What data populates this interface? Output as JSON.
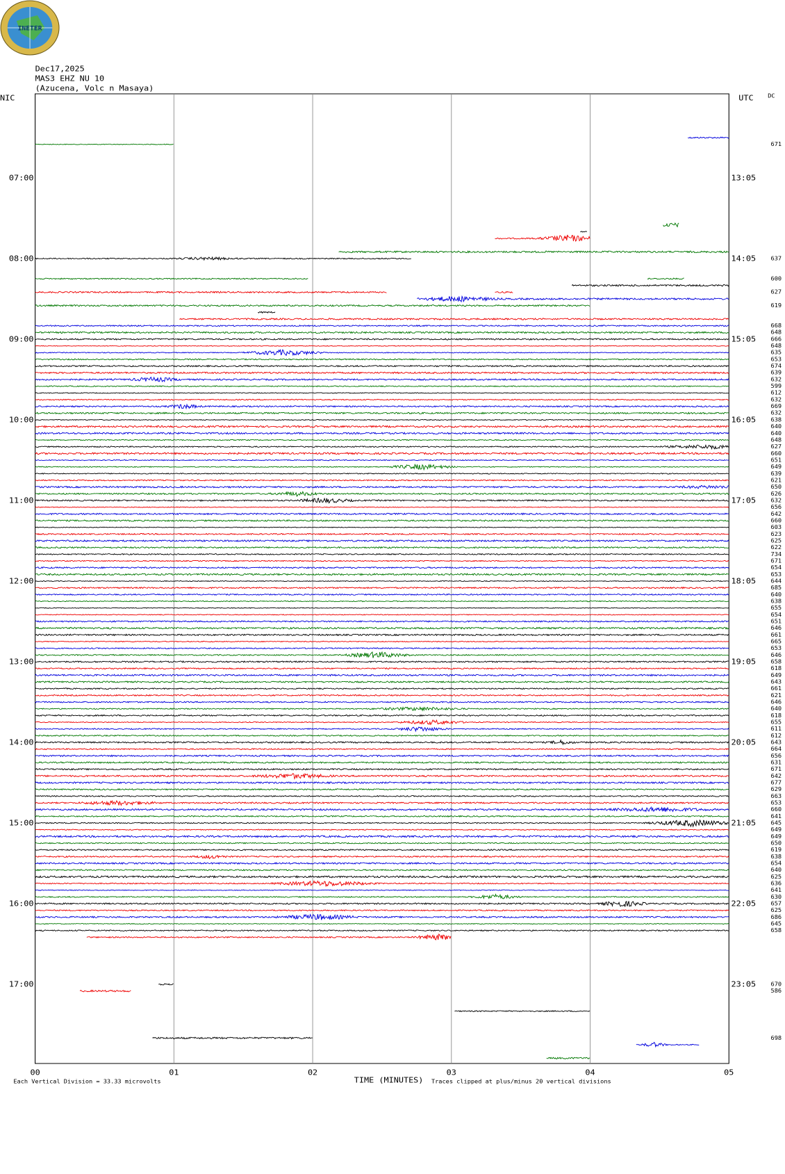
{
  "header": {
    "logo_text": "INETER",
    "date": "Dec17,2025",
    "station": "MAS3 EHZ NU 10",
    "location": "(Azucena, Volc n Masaya)"
  },
  "left_axis_label": "NIC",
  "right_axis_label": "UTC",
  "dc_heading": "DC",
  "left_times": [
    "07:00",
    "08:00",
    "09:00",
    "10:00",
    "11:00",
    "12:00",
    "13:00",
    "14:00",
    "15:00",
    "16:00",
    "17:00"
  ],
  "right_times": [
    "13:05",
    "14:05",
    "15:05",
    "16:05",
    "17:05",
    "18:05",
    "19:05",
    "20:05",
    "21:05",
    "22:05",
    "23:05"
  ],
  "dc_values": [
    "671",
    "637",
    "600",
    "627",
    "619",
    "668",
    "648",
    "666",
    "648",
    "635",
    "653",
    "674",
    "639",
    "632",
    "599",
    "612",
    "632",
    "669",
    "632",
    "638",
    "640",
    "640",
    "648",
    "627",
    "660",
    "651",
    "649",
    "639",
    "621",
    "650",
    "626",
    "632",
    "656",
    "642",
    "660",
    "603",
    "623",
    "625",
    "622",
    "734",
    "671",
    "654",
    "653",
    "644",
    "685",
    "640",
    "638",
    "655",
    "654",
    "651",
    "646",
    "661",
    "665",
    "653",
    "646",
    "658",
    "618",
    "649",
    "643",
    "661",
    "621",
    "646",
    "640",
    "618",
    "655",
    "611",
    "612",
    "643",
    "664",
    "656",
    "631",
    "671",
    "642",
    "677",
    "629",
    "663",
    "653",
    "660",
    "641",
    "645",
    "649",
    "649",
    "650",
    "619",
    "638",
    "654",
    "640",
    "625",
    "636",
    "641",
    "630",
    "657",
    "625",
    "686",
    "645",
    "658",
    "670",
    "586",
    "698"
  ],
  "x_ticks": [
    "00",
    "01",
    "02",
    "03",
    "04",
    "05"
  ],
  "x_axis_title": "TIME (MINUTES)",
  "footer_left": "Each Vertical Division =   33.33 microvolts",
  "footer_right": "Traces clipped at plus/minus 20 vertical divisions"
}
